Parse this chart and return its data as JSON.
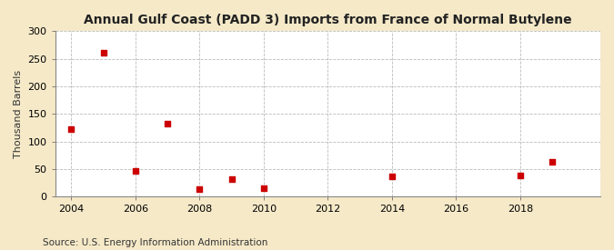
{
  "title": "Annual Gulf Coast (PADD 3) Imports from France of Normal Butylene",
  "ylabel": "Thousand Barrels",
  "source": "Source: U.S. Energy Information Administration",
  "background_color": "#f5e9c8",
  "plot_background_color": "#ffffff",
  "marker_color": "#cc0000",
  "marker": "s",
  "marker_size": 4,
  "xlim": [
    2003.5,
    2020.5
  ],
  "ylim": [
    0,
    300
  ],
  "yticks": [
    0,
    50,
    100,
    150,
    200,
    250,
    300
  ],
  "xticks": [
    2004,
    2006,
    2008,
    2010,
    2012,
    2014,
    2016,
    2018
  ],
  "data": {
    "2004": 122,
    "2005": 261,
    "2006": 47,
    "2007": 133,
    "2008": 14,
    "2009": 32,
    "2010": 15,
    "2014": 36,
    "2018": 38,
    "2019": 63
  }
}
